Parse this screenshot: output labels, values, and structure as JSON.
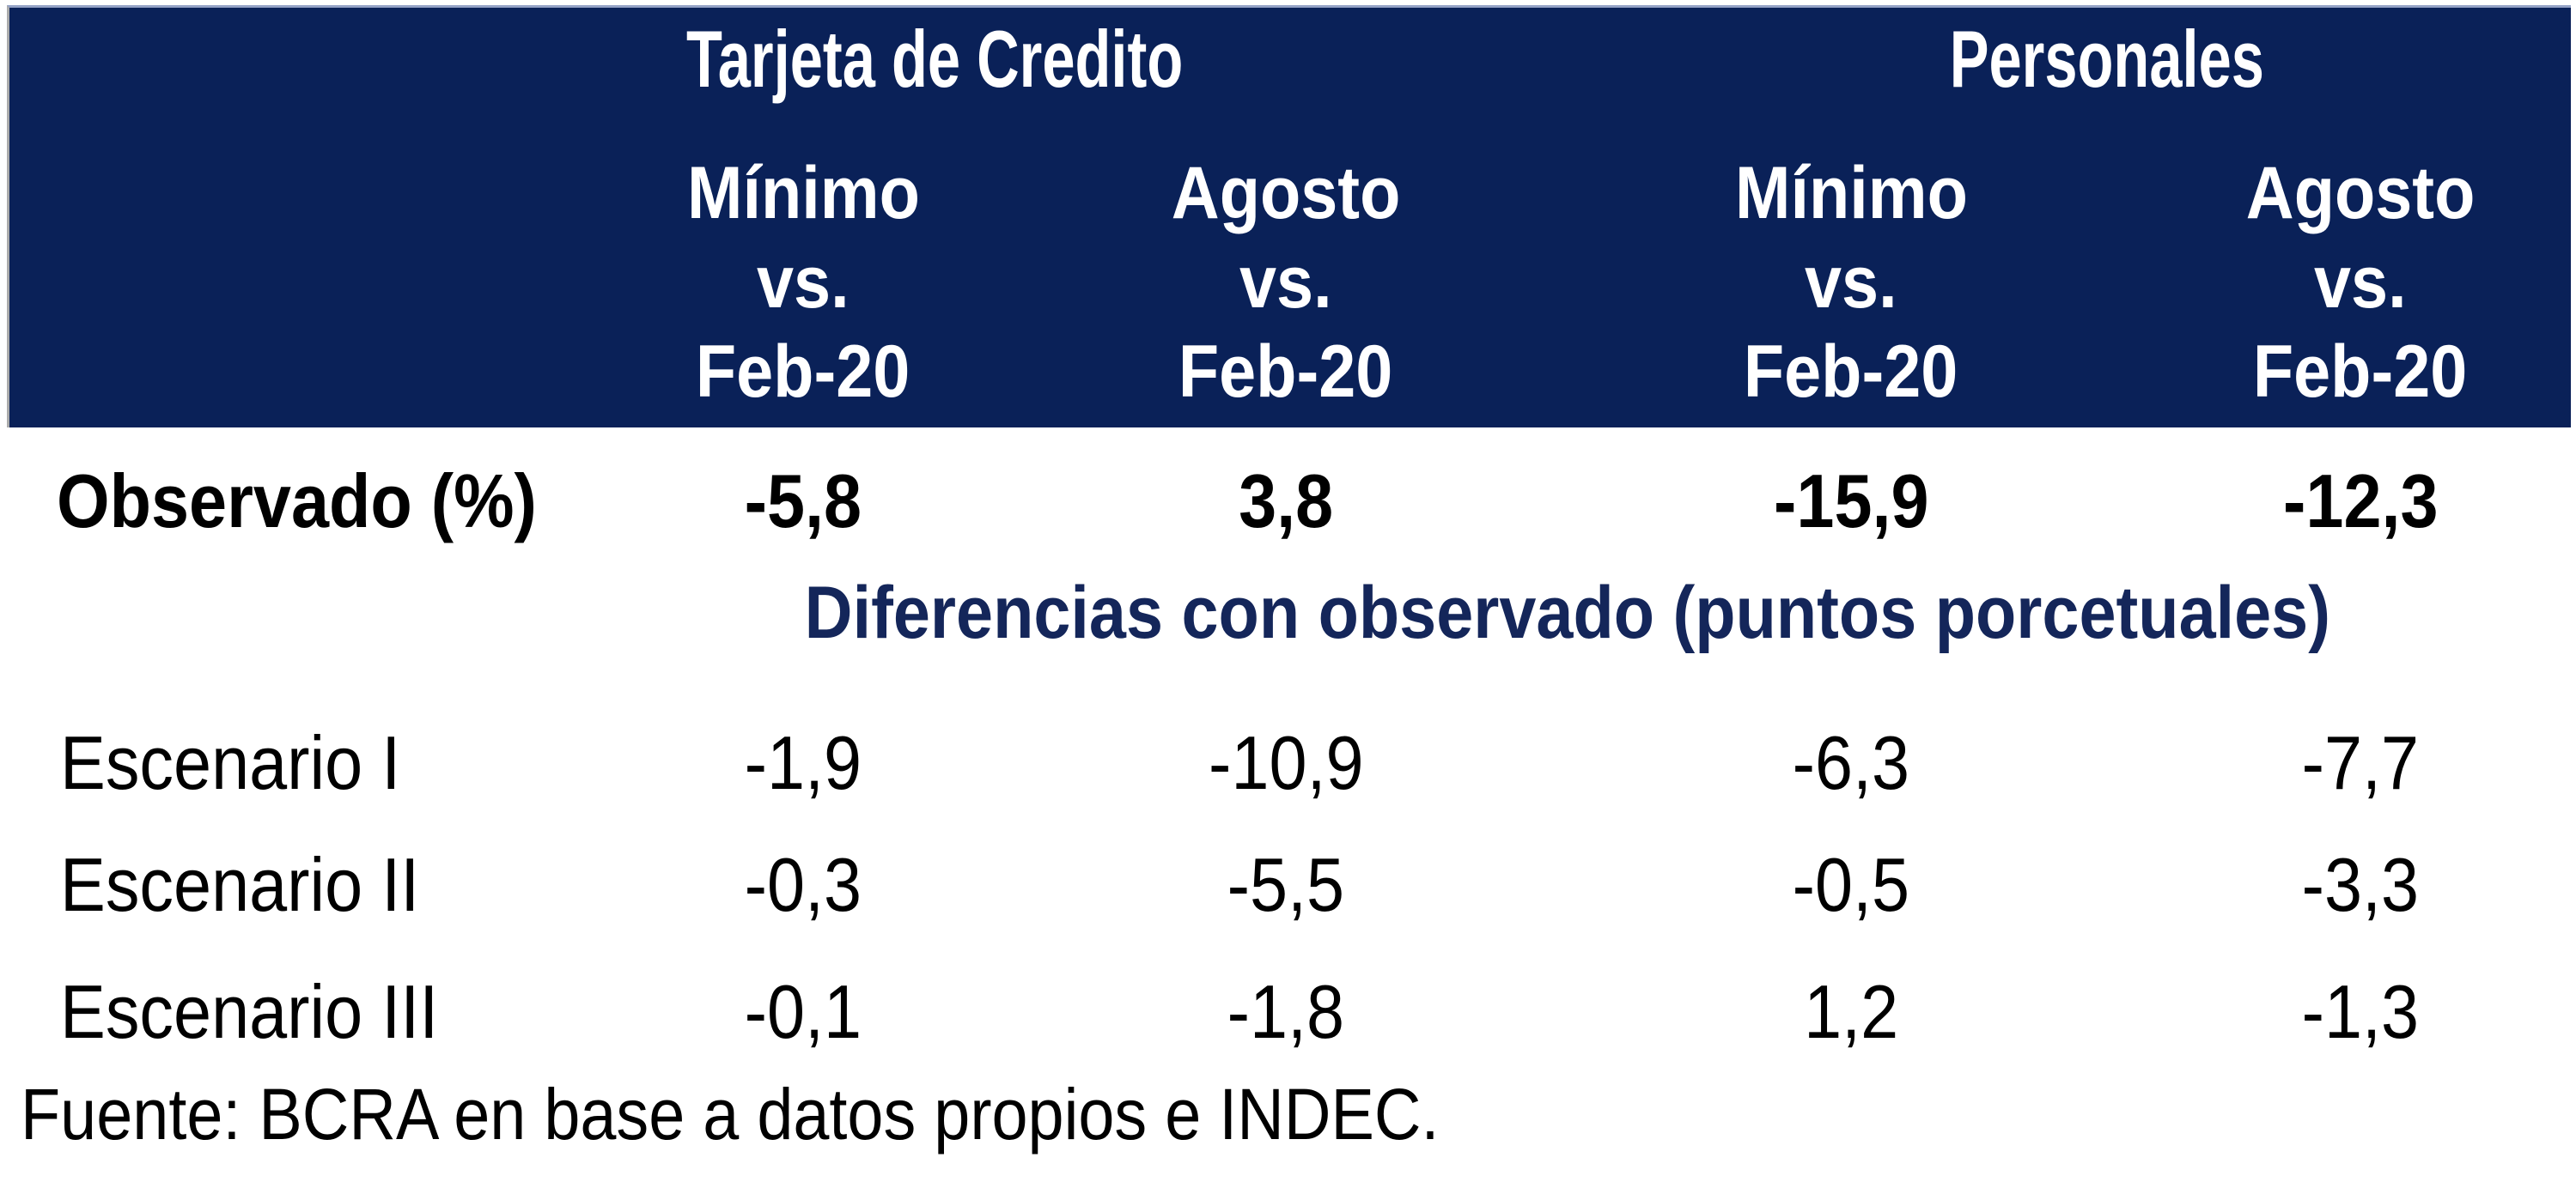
{
  "colors": {
    "header_background": "#0A2158",
    "header_text": "#FFFFFF",
    "section_heading_text": "#14265A",
    "body_text": "#000000",
    "header_border_top": "#94A2C6",
    "header_border_left": "#ABABAB",
    "page_background": "#FFFFFF"
  },
  "table": {
    "groups": [
      {
        "label": "Tarjeta de Credito"
      },
      {
        "label": "Personales"
      }
    ],
    "sub_headers": [
      {
        "period": "Mínimo",
        "vs": "vs.",
        "base": "Feb-20"
      },
      {
        "period": "Agosto",
        "vs": "vs.",
        "base": "Feb-20"
      },
      {
        "period": "Mínimo",
        "vs": "vs.",
        "base": "Feb-20"
      },
      {
        "period": "Agosto",
        "vs": "vs.",
        "base": "Feb-20"
      }
    ],
    "observed": {
      "label": "Observado (%)",
      "values": [
        "-5,8",
        "3,8",
        "-15,9",
        "-12,3"
      ]
    },
    "section_heading": "Diferencias con observado (puntos porcetuales)",
    "scenarios": [
      {
        "label": "Escenario I",
        "values": [
          "-1,9",
          "-10,9",
          "-6,3",
          "-7,7"
        ]
      },
      {
        "label": "Escenario II",
        "values": [
          "-0,3",
          "-5,5",
          "-0,5",
          "-3,3"
        ]
      },
      {
        "label": "Escenario III",
        "values": [
          "-0,1",
          "-1,8",
          "1,2",
          "-1,3"
        ]
      }
    ],
    "source_note": "Fuente: BCRA en base a datos propios e INDEC."
  },
  "chart_data": {
    "type": "table",
    "column_groups": [
      "Tarjeta de Credito",
      "Personales"
    ],
    "columns": [
      "Tarjeta de Credito - Mínimo vs. Feb-20",
      "Tarjeta de Credito - Agosto vs. Feb-20",
      "Personales - Mínimo vs. Feb-20",
      "Personales - Agosto vs. Feb-20"
    ],
    "rows": [
      {
        "label": "Observado (%)",
        "values": [
          -5.8,
          3.8,
          -15.9,
          -12.3
        ]
      }
    ],
    "section_heading": "Diferencias con observado (puntos porcetuales)",
    "section_rows": [
      {
        "label": "Escenario I",
        "values": [
          -1.9,
          -10.9,
          -6.3,
          -7.7
        ]
      },
      {
        "label": "Escenario II",
        "values": [
          -0.3,
          -5.5,
          -0.5,
          -3.3
        ]
      },
      {
        "label": "Escenario III",
        "values": [
          -0.1,
          -1.8,
          1.2,
          -1.3
        ]
      }
    ],
    "source": "Fuente: BCRA en base a datos propios e INDEC."
  }
}
